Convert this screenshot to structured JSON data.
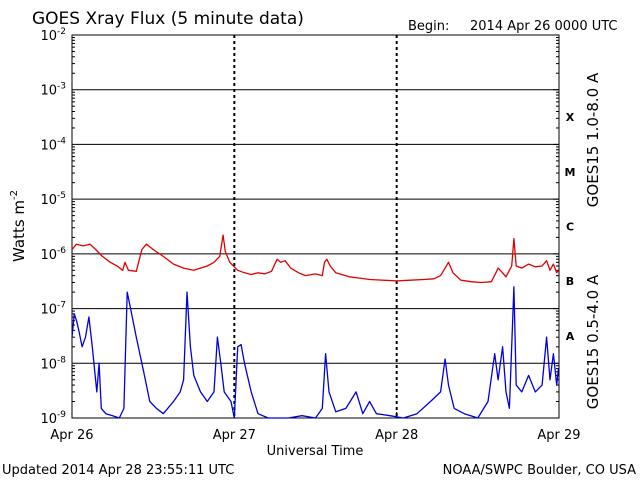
{
  "header": {
    "title": "GOES Xray Flux (5 minute data)",
    "begin_label": "Begin:",
    "begin_value": "2014 Apr 26 0000 UTC"
  },
  "footer": {
    "updated": "Updated 2014 Apr 28 23:55:11 UTC",
    "credit": "NOAA/SWPC Boulder, CO USA"
  },
  "chart_data": {
    "type": "line",
    "title": "GOES Xray Flux (5 minute data)",
    "xlabel": "Universal Time",
    "ylabel": "Watts m",
    "ylabel_exponent": "-2",
    "yscale": "log",
    "ylim": [
      1e-09,
      0.01
    ],
    "xlim": [
      "2014-04-26T00:00",
      "2014-04-29T00:00"
    ],
    "x_ticks": [
      {
        "label": "Apr 26",
        "t": "2014-04-26T00:00"
      },
      {
        "label": "Apr 27",
        "t": "2014-04-27T00:00"
      },
      {
        "label": "Apr 28",
        "t": "2014-04-28T00:00"
      },
      {
        "label": "Apr 29",
        "t": "2014-04-29T00:00"
      }
    ],
    "y_ticks": [
      {
        "base": "10",
        "exp": "-2",
        "v": 0.01
      },
      {
        "base": "10",
        "exp": "-3",
        "v": 0.001
      },
      {
        "base": "10",
        "exp": "-4",
        "v": 0.0001
      },
      {
        "base": "10",
        "exp": "-5",
        "v": 1e-05
      },
      {
        "base": "10",
        "exp": "-6",
        "v": 1e-06
      },
      {
        "base": "10",
        "exp": "-7",
        "v": 1e-07
      },
      {
        "base": "10",
        "exp": "-8",
        "v": 1e-08
      },
      {
        "base": "10",
        "exp": "-9",
        "v": 1e-09
      }
    ],
    "flare_classes": [
      {
        "label": "X",
        "min": 0.0001,
        "max": 0.001
      },
      {
        "label": "M",
        "min": 1e-05,
        "max": 0.0001
      },
      {
        "label": "C",
        "min": 1e-06,
        "max": 1e-05
      },
      {
        "label": "B",
        "min": 1e-07,
        "max": 1e-06
      },
      {
        "label": "A",
        "min": 1e-08,
        "max": 1e-07
      }
    ],
    "grid": "horizontal at each decade; dashed vertical at day boundaries",
    "series": [
      {
        "name": "GOES15 1.0-8.0 A",
        "color": "#e00000",
        "points": [
          [
            "2014-04-26T00:00",
            1.2e-06
          ],
          [
            "2014-04-26T00:40",
            1.5e-06
          ],
          [
            "2014-04-26T01:40",
            1.4e-06
          ],
          [
            "2014-04-26T02:40",
            1.5e-06
          ],
          [
            "2014-04-26T03:30",
            1.2e-06
          ],
          [
            "2014-04-26T04:30",
            9e-07
          ],
          [
            "2014-04-26T05:40",
            7e-07
          ],
          [
            "2014-04-26T06:40",
            6e-07
          ],
          [
            "2014-04-26T07:30",
            5e-07
          ],
          [
            "2014-04-26T07:50",
            7e-07
          ],
          [
            "2014-04-26T08:20",
            5e-07
          ],
          [
            "2014-04-26T09:30",
            4.8e-07
          ],
          [
            "2014-04-26T10:20",
            1.2e-06
          ],
          [
            "2014-04-26T11:00",
            1.5e-06
          ],
          [
            "2014-04-26T12:00",
            1.2e-06
          ],
          [
            "2014-04-26T13:30",
            9e-07
          ],
          [
            "2014-04-26T15:00",
            6.5e-07
          ],
          [
            "2014-04-26T16:30",
            5.5e-07
          ],
          [
            "2014-04-26T18:00",
            5e-07
          ],
          [
            "2014-04-26T19:00",
            5.5e-07
          ],
          [
            "2014-04-26T20:00",
            6e-07
          ],
          [
            "2014-04-26T21:00",
            7e-07
          ],
          [
            "2014-04-26T21:50",
            9e-07
          ],
          [
            "2014-04-26T22:20",
            2.2e-06
          ],
          [
            "2014-04-26T22:40",
            1.1e-06
          ],
          [
            "2014-04-26T23:20",
            7e-07
          ],
          [
            "2014-04-27T00:30",
            5e-07
          ],
          [
            "2014-04-27T01:30",
            4.5e-07
          ],
          [
            "2014-04-27T02:30",
            4.2e-07
          ],
          [
            "2014-04-27T03:30",
            4.5e-07
          ],
          [
            "2014-04-27T04:30",
            4.3e-07
          ],
          [
            "2014-04-27T05:30",
            4.8e-07
          ],
          [
            "2014-04-27T06:20",
            8e-07
          ],
          [
            "2014-04-27T06:50",
            7e-07
          ],
          [
            "2014-04-27T07:30",
            7.5e-07
          ],
          [
            "2014-04-27T08:20",
            5.5e-07
          ],
          [
            "2014-04-27T09:30",
            4.5e-07
          ],
          [
            "2014-04-27T10:30",
            4e-07
          ],
          [
            "2014-04-27T12:00",
            4.3e-07
          ],
          [
            "2014-04-27T13:00",
            4e-07
          ],
          [
            "2014-04-27T13:20",
            7e-07
          ],
          [
            "2014-04-27T13:40",
            8e-07
          ],
          [
            "2014-04-27T14:10",
            6e-07
          ],
          [
            "2014-04-27T15:00",
            4.5e-07
          ],
          [
            "2014-04-27T17:00",
            3.8e-07
          ],
          [
            "2014-04-27T18:30",
            3.6e-07
          ],
          [
            "2014-04-27T20:00",
            3.4e-07
          ],
          [
            "2014-04-27T22:00",
            3.3e-07
          ],
          [
            "2014-04-28T00:00",
            3.2e-07
          ],
          [
            "2014-04-28T02:00",
            3.3e-07
          ],
          [
            "2014-04-28T04:00",
            3.4e-07
          ],
          [
            "2014-04-28T05:30",
            3.5e-07
          ],
          [
            "2014-04-28T06:30",
            4e-07
          ],
          [
            "2014-04-28T07:10",
            5.5e-07
          ],
          [
            "2014-04-28T07:40",
            7e-07
          ],
          [
            "2014-04-28T08:20",
            4.5e-07
          ],
          [
            "2014-04-28T09:30",
            3.3e-07
          ],
          [
            "2014-04-28T11:00",
            3.1e-07
          ],
          [
            "2014-04-28T12:30",
            3e-07
          ],
          [
            "2014-04-28T14:00",
            3.1e-07
          ],
          [
            "2014-04-28T14:40",
            4.5e-07
          ],
          [
            "2014-04-28T15:00",
            5.5e-07
          ],
          [
            "2014-04-28T15:40",
            4.5e-07
          ],
          [
            "2014-04-28T16:10",
            3.8e-07
          ],
          [
            "2014-04-28T16:40",
            5e-07
          ],
          [
            "2014-04-28T17:00",
            6e-07
          ],
          [
            "2014-04-28T17:20",
            1.9e-06
          ],
          [
            "2014-04-28T17:40",
            6e-07
          ],
          [
            "2014-04-28T18:30",
            5.5e-07
          ],
          [
            "2014-04-28T19:30",
            6.5e-07
          ],
          [
            "2014-04-28T20:30",
            5.8e-07
          ],
          [
            "2014-04-28T21:30",
            6e-07
          ],
          [
            "2014-04-28T22:10",
            7.5e-07
          ],
          [
            "2014-04-28T22:40",
            5e-07
          ],
          [
            "2014-04-28T23:10",
            6.5e-07
          ],
          [
            "2014-04-28T23:40",
            4.5e-07
          ],
          [
            "2014-04-28T23:55",
            5e-07
          ]
        ]
      },
      {
        "name": "GOES15 0.5-4.0 A",
        "color": "#0000e0",
        "points": [
          [
            "2014-04-26T00:00",
            3e-08
          ],
          [
            "2014-04-26T00:20",
            8e-08
          ],
          [
            "2014-04-26T00:40",
            6e-08
          ],
          [
            "2014-04-26T01:00",
            4e-08
          ],
          [
            "2014-04-26T01:30",
            2e-08
          ],
          [
            "2014-04-26T02:00",
            3e-08
          ],
          [
            "2014-04-26T02:30",
            7e-08
          ],
          [
            "2014-04-26T03:00",
            2e-08
          ],
          [
            "2014-04-26T03:40",
            3e-09
          ],
          [
            "2014-04-26T04:00",
            1e-08
          ],
          [
            "2014-04-26T04:20",
            1.5e-09
          ],
          [
            "2014-04-26T05:00",
            1.2e-09
          ],
          [
            "2014-04-26T06:00",
            1.1e-09
          ],
          [
            "2014-04-26T07:00",
            1e-09
          ],
          [
            "2014-04-26T07:40",
            1.5e-09
          ],
          [
            "2014-04-26T08:10",
            2e-07
          ],
          [
            "2014-04-26T08:40",
            1e-07
          ],
          [
            "2014-04-26T09:30",
            3e-08
          ],
          [
            "2014-04-26T10:30",
            8e-09
          ],
          [
            "2014-04-26T11:30",
            2e-09
          ],
          [
            "2014-04-26T12:30",
            1.5e-09
          ],
          [
            "2014-04-26T13:30",
            1.2e-09
          ],
          [
            "2014-04-26T15:00",
            2e-09
          ],
          [
            "2014-04-26T16:00",
            3e-09
          ],
          [
            "2014-04-26T16:30",
            5e-09
          ],
          [
            "2014-04-26T17:00",
            2e-07
          ],
          [
            "2014-04-26T17:30",
            2e-08
          ],
          [
            "2014-04-26T18:00",
            6e-09
          ],
          [
            "2014-04-26T19:00",
            3e-09
          ],
          [
            "2014-04-26T20:00",
            2e-09
          ],
          [
            "2014-04-26T21:00",
            3e-09
          ],
          [
            "2014-04-26T21:30",
            3e-08
          ],
          [
            "2014-04-26T22:00",
            1e-08
          ],
          [
            "2014-04-26T22:30",
            3e-09
          ],
          [
            "2014-04-26T23:30",
            2e-09
          ],
          [
            "2014-04-27T00:00",
            1e-09
          ],
          [
            "2014-04-27T00:30",
            2e-08
          ],
          [
            "2014-04-27T01:00",
            2.2e-08
          ],
          [
            "2014-04-27T01:30",
            1e-08
          ],
          [
            "2014-04-27T02:30",
            3e-09
          ],
          [
            "2014-04-27T03:30",
            1.2e-09
          ],
          [
            "2014-04-27T05:00",
            1e-09
          ],
          [
            "2014-04-27T08:00",
            1e-09
          ],
          [
            "2014-04-27T10:00",
            1.1e-09
          ],
          [
            "2014-04-27T12:00",
            1e-09
          ],
          [
            "2014-04-27T13:00",
            1.5e-09
          ],
          [
            "2014-04-27T13:30",
            1.5e-08
          ],
          [
            "2014-04-27T14:00",
            3e-09
          ],
          [
            "2014-04-27T15:00",
            1.3e-09
          ],
          [
            "2014-04-27T16:30",
            1.5e-09
          ],
          [
            "2014-04-27T18:00",
            3e-09
          ],
          [
            "2014-04-27T19:00",
            1.2e-09
          ],
          [
            "2014-04-27T20:00",
            2e-09
          ],
          [
            "2014-04-27T21:00",
            1.2e-09
          ],
          [
            "2014-04-27T23:00",
            1.1e-09
          ],
          [
            "2014-04-28T01:00",
            1e-09
          ],
          [
            "2014-04-28T03:00",
            1.2e-09
          ],
          [
            "2014-04-28T05:00",
            2e-09
          ],
          [
            "2014-04-28T06:30",
            3e-09
          ],
          [
            "2014-04-28T07:10",
            1.2e-08
          ],
          [
            "2014-04-28T07:40",
            4e-09
          ],
          [
            "2014-04-28T08:30",
            1.5e-09
          ],
          [
            "2014-04-28T10:00",
            1.2e-09
          ],
          [
            "2014-04-28T12:00",
            1e-09
          ],
          [
            "2014-04-28T13:30",
            2e-09
          ],
          [
            "2014-04-28T14:30",
            1.5e-08
          ],
          [
            "2014-04-28T15:00",
            5e-09
          ],
          [
            "2014-04-28T15:40",
            2e-08
          ],
          [
            "2014-04-28T16:10",
            3e-09
          ],
          [
            "2014-04-28T16:40",
            1.5e-09
          ],
          [
            "2014-04-28T17:20",
            2.5e-07
          ],
          [
            "2014-04-28T17:40",
            4e-09
          ],
          [
            "2014-04-28T18:30",
            3e-09
          ],
          [
            "2014-04-28T19:30",
            6e-09
          ],
          [
            "2014-04-28T20:30",
            3e-09
          ],
          [
            "2014-04-28T21:30",
            4e-09
          ],
          [
            "2014-04-28T22:10",
            3e-08
          ],
          [
            "2014-04-28T22:40",
            5e-09
          ],
          [
            "2014-04-28T23:10",
            1.5e-08
          ],
          [
            "2014-04-28T23:40",
            4e-09
          ],
          [
            "2014-04-28T23:55",
            8e-09
          ]
        ]
      }
    ]
  }
}
